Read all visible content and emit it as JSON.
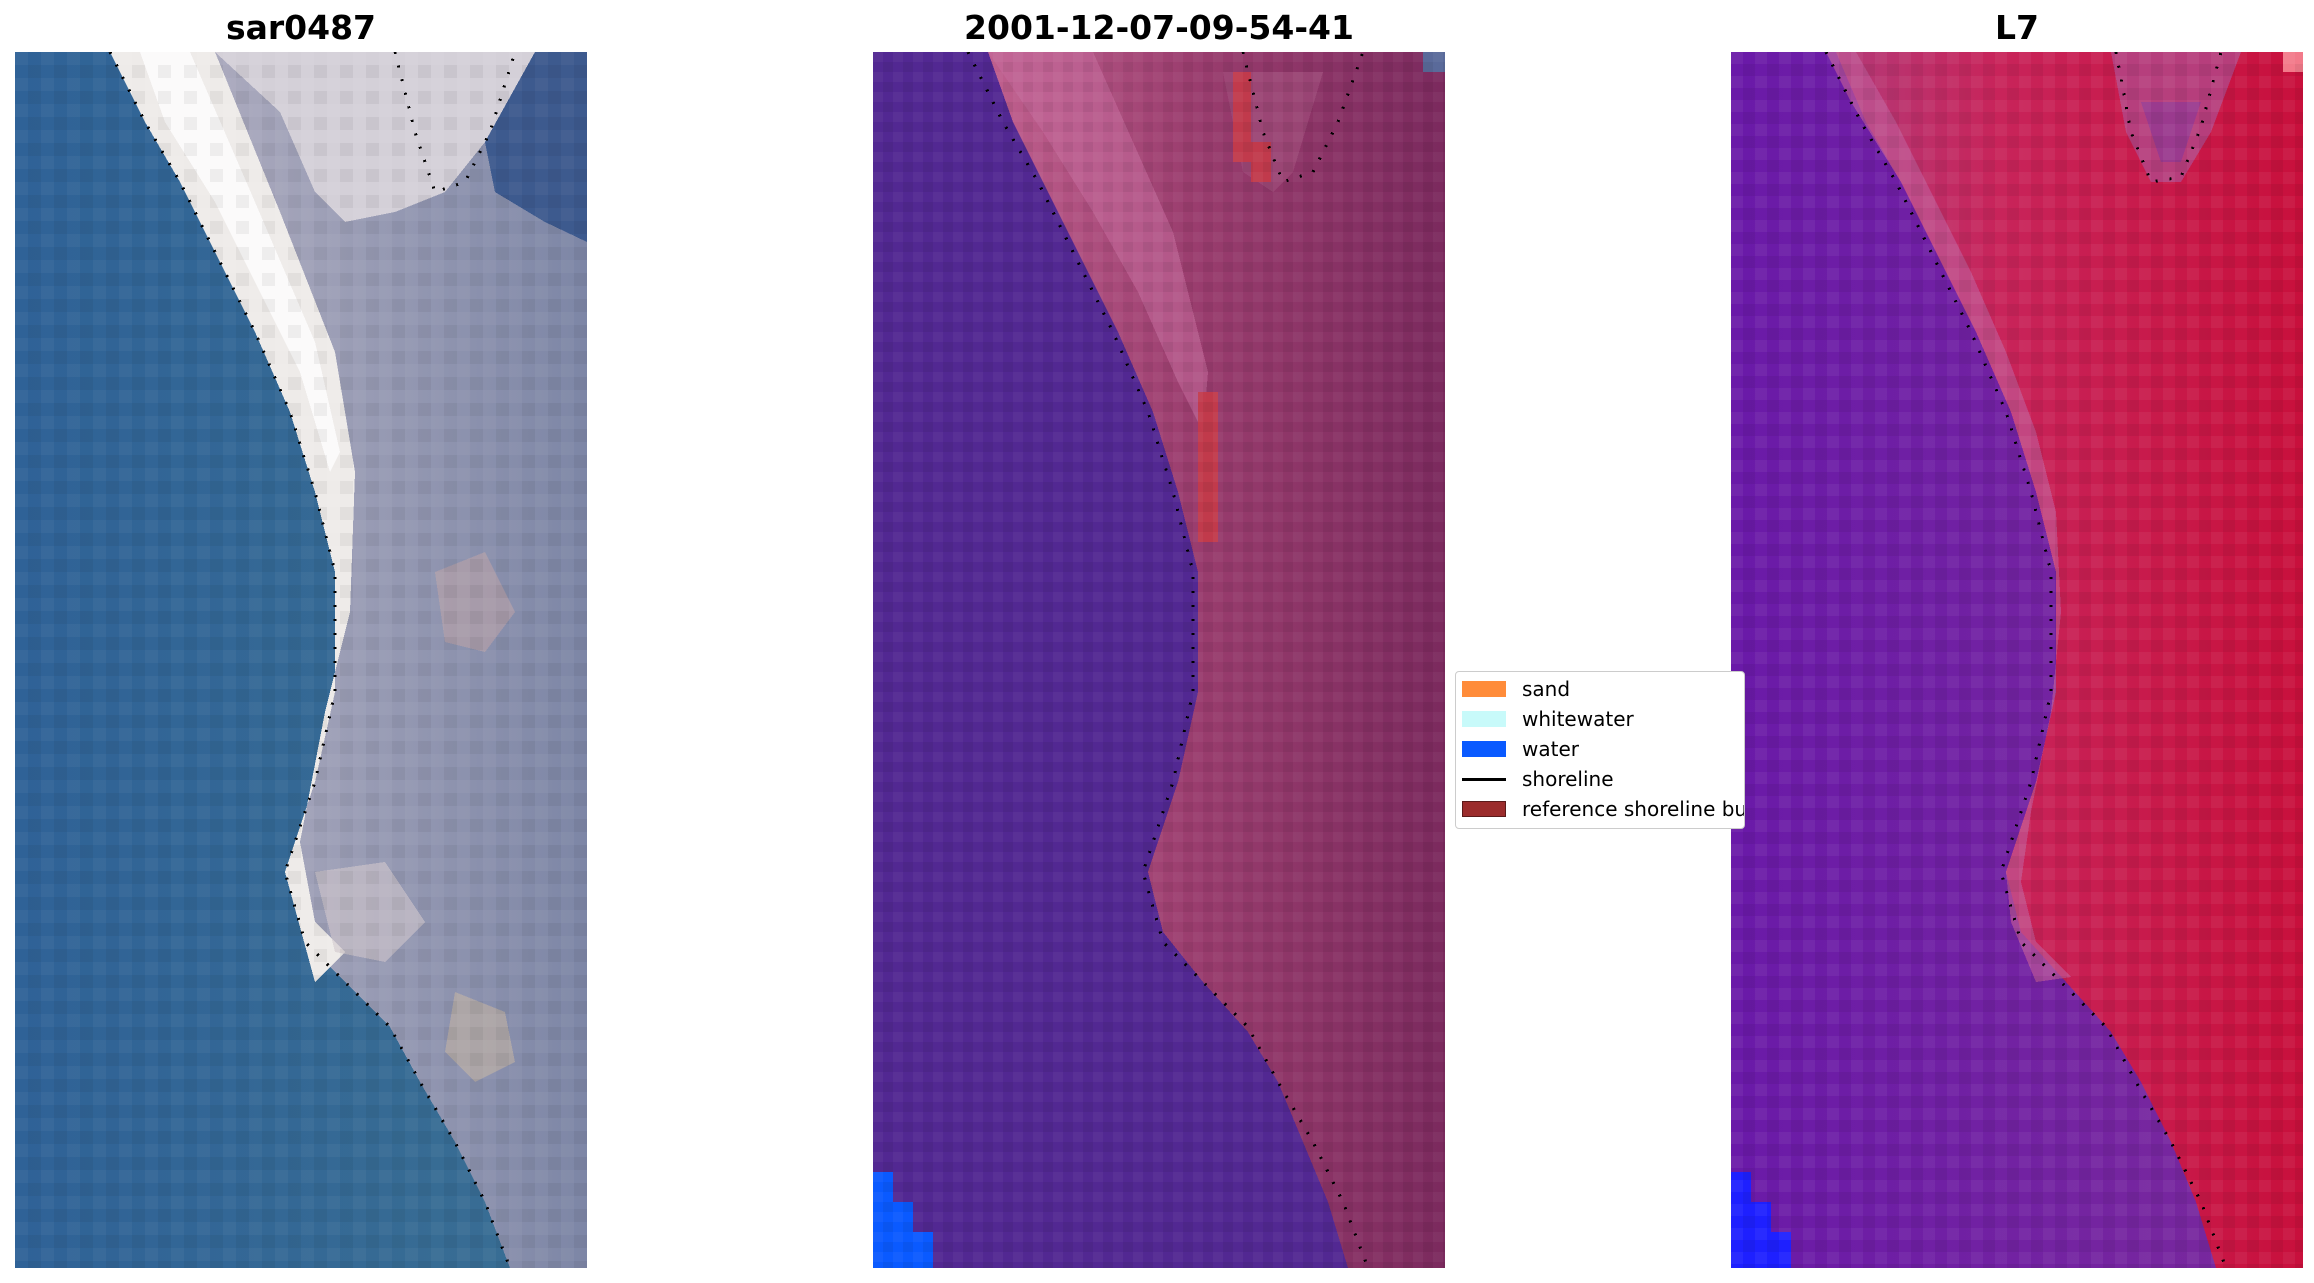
{
  "panels": [
    {
      "title": "sar0487"
    },
    {
      "title": "2001-12-07-09-54-41"
    },
    {
      "title": "L7"
    }
  ],
  "legend": {
    "items": [
      {
        "label": "sand",
        "color": "#ff8c3a"
      },
      {
        "label": "whitewater",
        "color": "#c8fafa"
      },
      {
        "label": "water",
        "color": "#0a5aff"
      },
      {
        "label": "shoreline",
        "color": "#000000"
      },
      {
        "label": "reference shoreline buffer",
        "color": "#9b2c2c"
      }
    ]
  },
  "colors": {
    "water_rgb": "#2d5e8e",
    "beach_white": "#f2f0ec",
    "land_grey": "#9a97a8",
    "classified_water": "#522892",
    "classified_land": "#9a3d6e",
    "ndwi_water": "#6b22a6",
    "ndwi_land": "#c81e50"
  }
}
